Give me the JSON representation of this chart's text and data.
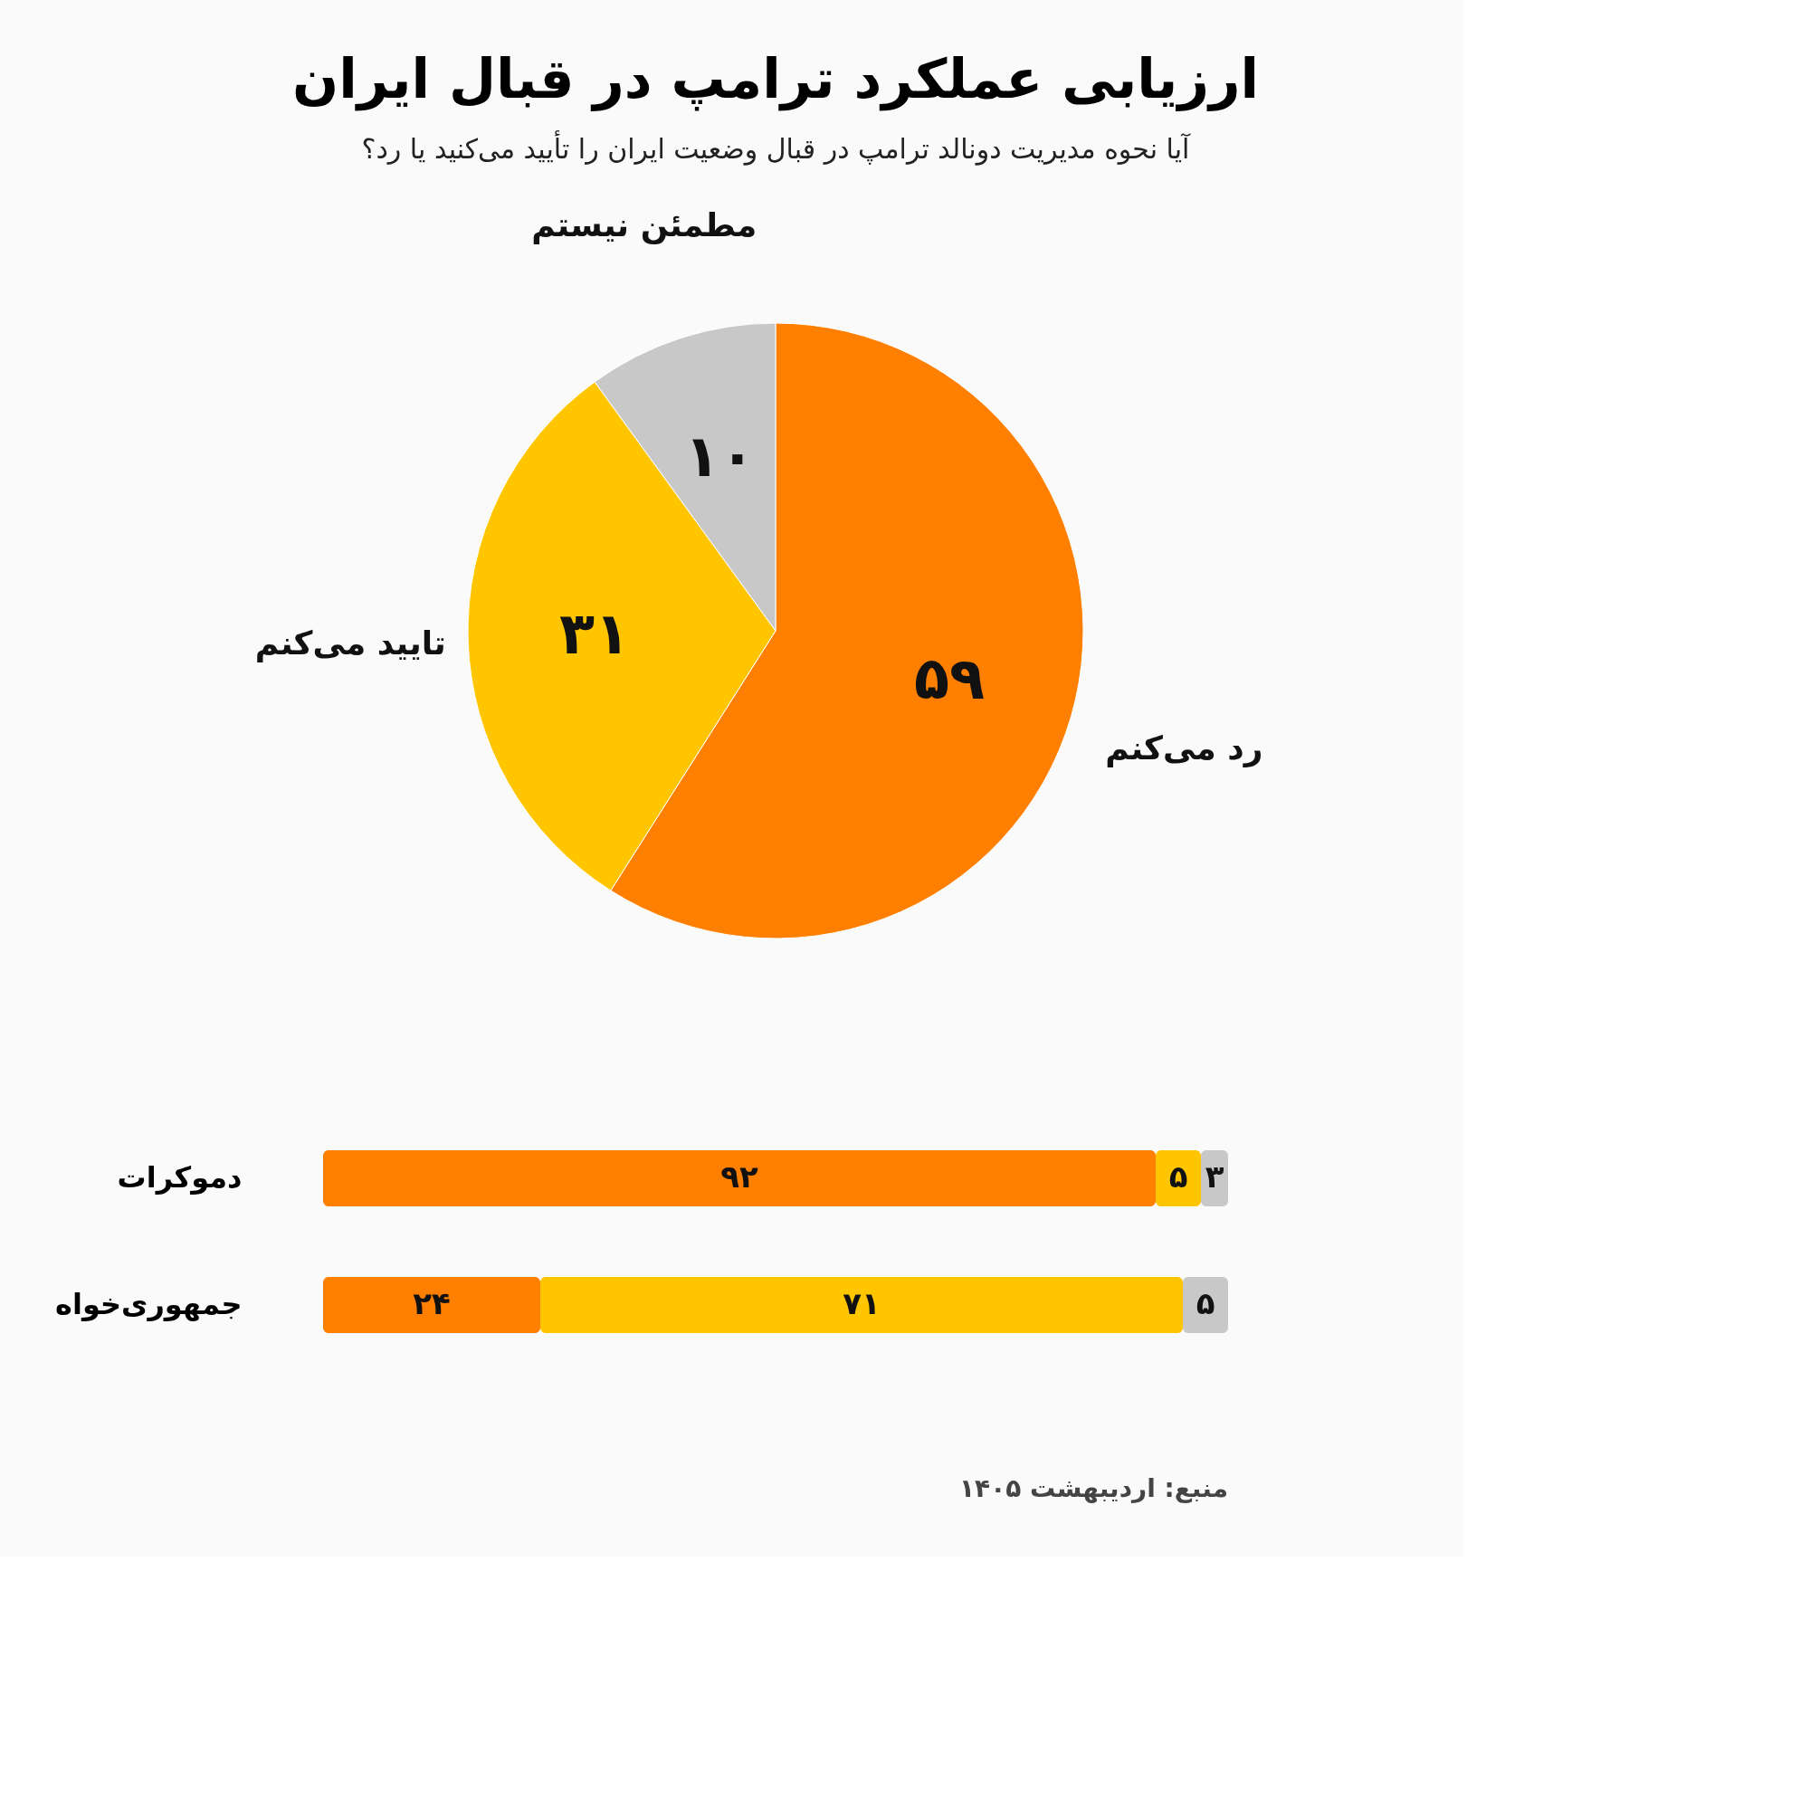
{
  "chart_data": [
    {
      "type": "pie",
      "title": "ارزیابی عملکرد ترامپ در قبال ایران",
      "subtitle": "آیا نحوه مدیریت دونالد ترامپ در قبال وضعیت ایران را تأیید می‌کنید یا رد؟",
      "categories": [
        "رد می‌کنم",
        "تایید می‌کنم",
        "مطمئن نیستم"
      ],
      "values": [
        59,
        31,
        10
      ],
      "colors": [
        "#ff7f00",
        "#ffc600",
        "#c8c8c8"
      ],
      "value_labels": [
        "۵۹",
        "۳۱",
        "۱۰"
      ],
      "legend": false
    },
    {
      "type": "bar",
      "orientation": "horizontal",
      "stacked": true,
      "categories": [
        "دموکرات",
        "جمهوری‌خواه"
      ],
      "series": [
        {
          "color": "#ff7f00",
          "values": [
            92,
            24
          ],
          "value_labels": [
            "۹۲",
            "۲۴"
          ]
        },
        {
          "color": "#ffc600",
          "values": [
            5,
            71
          ],
          "value_labels": [
            "۵",
            "۷۱"
          ]
        },
        {
          "color": "#c8c8c8",
          "values": [
            3,
            5
          ],
          "value_labels": [
            "۳",
            "۵"
          ]
        }
      ],
      "xlim": [
        0,
        100
      ],
      "tick_labels": "y",
      "grid": false,
      "legend": false,
      "annotations": [
        "منبع: اردیبهشت ۱۴۰۵"
      ]
    }
  ]
}
